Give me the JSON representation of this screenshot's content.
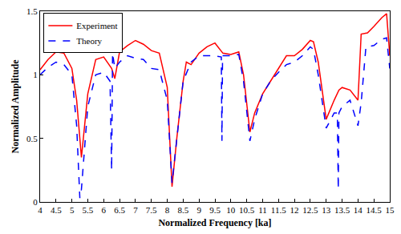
{
  "chart_data": {
    "type": "line",
    "x_label": "Normalized Frequency [ka]",
    "y_label": "Normalized Amplitude",
    "xlim": [
      4,
      15
    ],
    "xticks": [
      4,
      4.5,
      5,
      5.5,
      6,
      6.5,
      7,
      7.5,
      8,
      8.5,
      9,
      9.5,
      10,
      10.5,
      11,
      11.5,
      12,
      12.5,
      13,
      13.5,
      14,
      14.5,
      15
    ],
    "ylim": [
      0,
      1.5
    ],
    "yticks": [
      0,
      0.5,
      1,
      1.5
    ],
    "grid": false,
    "legend": "upper left",
    "series": [
      {
        "name": "Experiment",
        "color": "#ff0000",
        "line_style": "solid",
        "x": [
          4.0,
          4.25,
          4.5,
          4.75,
          5.0,
          5.15,
          5.3,
          5.5,
          5.75,
          6.0,
          6.25,
          6.35,
          6.5,
          6.75,
          7.0,
          7.25,
          7.5,
          7.75,
          8.0,
          8.15,
          8.3,
          8.5,
          8.6,
          8.75,
          9.0,
          9.25,
          9.5,
          9.75,
          10.0,
          10.25,
          10.4,
          10.6,
          10.75,
          11.0,
          11.25,
          11.5,
          11.75,
          12.0,
          12.25,
          12.5,
          12.6,
          12.75,
          13.0,
          13.25,
          13.4,
          13.5,
          13.75,
          14.0,
          14.1,
          14.3,
          14.5,
          14.75,
          14.9,
          15.0
        ],
        "values": [
          1.04,
          1.12,
          1.18,
          1.17,
          1.05,
          0.8,
          0.35,
          0.85,
          1.12,
          1.14,
          1.05,
          0.97,
          1.18,
          1.23,
          1.27,
          1.24,
          1.19,
          1.17,
          0.9,
          0.12,
          0.5,
          0.95,
          1.1,
          1.08,
          1.17,
          1.22,
          1.25,
          1.17,
          1.16,
          1.18,
          1.0,
          0.55,
          0.7,
          0.85,
          0.95,
          1.05,
          1.15,
          1.15,
          1.2,
          1.27,
          1.26,
          1.1,
          0.65,
          0.8,
          0.88,
          0.9,
          0.88,
          0.8,
          1.32,
          1.33,
          1.38,
          1.45,
          1.48,
          1.15
        ]
      },
      {
        "name": "Theory",
        "color": "#0000ff",
        "line_style": "dash",
        "x": [
          4.0,
          4.25,
          4.5,
          4.75,
          5.0,
          5.15,
          5.25,
          5.3,
          5.5,
          5.75,
          6.0,
          6.2,
          6.25,
          6.28,
          6.35,
          6.5,
          6.75,
          7.0,
          7.25,
          7.5,
          7.75,
          8.0,
          8.15,
          8.3,
          8.5,
          8.75,
          9.0,
          9.5,
          9.7,
          9.72,
          9.74,
          10.0,
          10.25,
          10.4,
          10.6,
          10.75,
          11.0,
          11.25,
          11.5,
          11.75,
          12.0,
          12.25,
          12.5,
          12.6,
          12.75,
          13.0,
          13.25,
          13.35,
          13.38,
          13.4,
          13.5,
          13.75,
          14.0,
          14.1,
          14.25,
          14.5,
          14.75,
          14.9,
          15.0
        ],
        "values": [
          1.0,
          1.06,
          1.1,
          1.08,
          1.0,
          0.6,
          0.03,
          0.1,
          0.75,
          1.0,
          1.02,
          0.95,
          0.25,
          1.17,
          1.05,
          1.1,
          1.15,
          1.13,
          1.12,
          1.05,
          1.04,
          0.8,
          0.15,
          0.5,
          0.95,
          1.1,
          1.15,
          1.15,
          1.14,
          0.48,
          1.15,
          1.15,
          1.16,
          0.95,
          0.48,
          0.65,
          0.85,
          0.95,
          1.02,
          1.08,
          1.1,
          1.15,
          1.22,
          1.2,
          1.0,
          0.58,
          0.7,
          0.7,
          0.1,
          0.7,
          0.75,
          0.8,
          0.6,
          0.78,
          1.22,
          1.23,
          1.28,
          1.29,
          1.05
        ]
      }
    ]
  }
}
